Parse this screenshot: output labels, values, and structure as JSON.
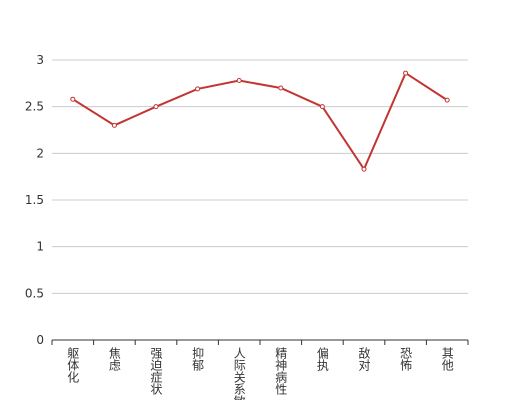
{
  "chart_data": {
    "type": "line",
    "categories": [
      "躯体化",
      "焦虑",
      "强迫症状",
      "抑郁",
      "人际关系敏感",
      "精神病性",
      "偏执",
      "敌对",
      "恐怖",
      "其他"
    ],
    "values": [
      2.58,
      2.3,
      2.5,
      2.69,
      2.78,
      2.7,
      2.5,
      1.83,
      2.86,
      2.57
    ],
    "color": "#c23531",
    "ylim": [
      0,
      3
    ],
    "yticks": [
      0,
      0.5,
      1,
      1.5,
      2,
      2.5,
      3
    ],
    "grid": true
  }
}
